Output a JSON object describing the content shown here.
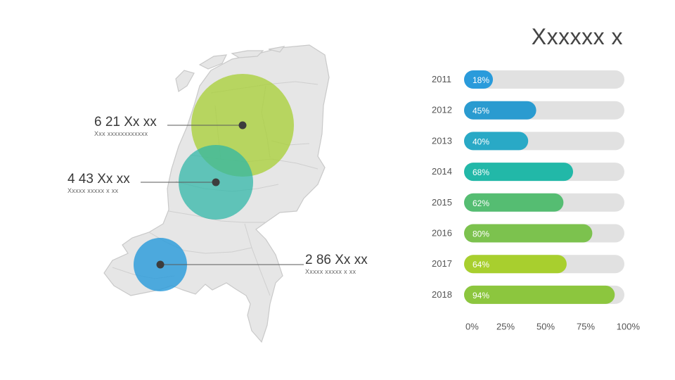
{
  "title": "Xxxxxx x",
  "callouts": [
    {
      "value": "6 21 Xx xx",
      "sub": "Xxx xxxxxxxxxxxx",
      "color": "#a9cf3a"
    },
    {
      "value": "4 43 Xx xx",
      "sub": "Xxxxx xxxxx x xx",
      "color": "#2bb5a6"
    },
    {
      "value": "2 86 Xx xx",
      "sub": "Xxxxx xxxxx x xx",
      "color": "#2a9bdb"
    }
  ],
  "chart_data": {
    "type": "bar",
    "orientation": "horizontal",
    "categories": [
      "2011",
      "2012",
      "2013",
      "2014",
      "2015",
      "2016",
      "2017",
      "2018"
    ],
    "values": [
      18,
      45,
      40,
      68,
      62,
      80,
      64,
      94
    ],
    "labels": [
      "18%",
      "45%",
      "40%",
      "68%",
      "62%",
      "80%",
      "64%",
      "94%"
    ],
    "colors": [
      "#2a9bdb",
      "#2a9bd0",
      "#29a9c6",
      "#22b8a8",
      "#55bd72",
      "#7cc24e",
      "#a8cf2e",
      "#8cc63e"
    ],
    "track_color": "#e1e1e1",
    "xlim": [
      0,
      100
    ],
    "xticks": [
      "0%",
      "25%",
      "50%",
      "75%",
      "100%"
    ],
    "grid": false,
    "legend": "none"
  }
}
